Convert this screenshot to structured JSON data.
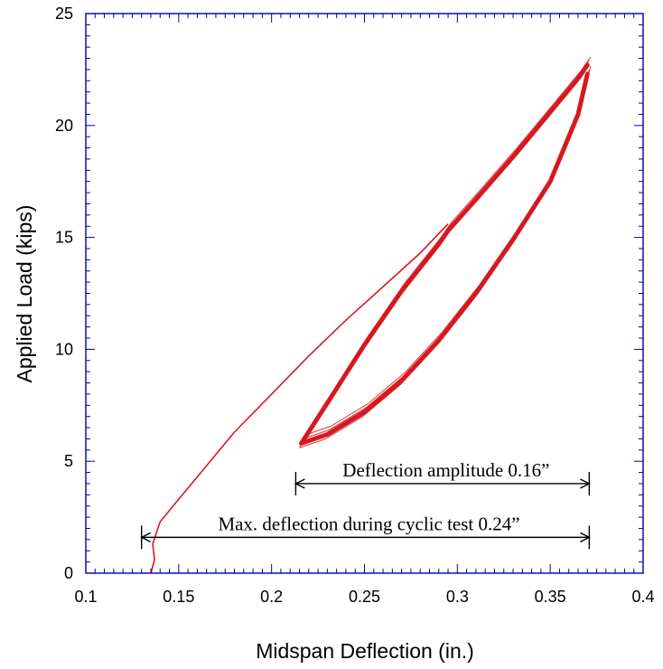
{
  "chart_data": {
    "type": "line",
    "title": "",
    "xlabel": "Midspan Deflection (in.)",
    "ylabel": "Applied Load (kips)",
    "xlim": [
      0.1,
      0.4
    ],
    "ylim": [
      0,
      25
    ],
    "x_ticks": [
      "0.1",
      "0.15",
      "0.2",
      "0.25",
      "0.3",
      "0.35",
      "0.4"
    ],
    "y_ticks": [
      "0",
      "5",
      "10",
      "15",
      "20",
      "25"
    ],
    "grid": false,
    "legend": "none",
    "colors": {
      "series": "#d7191f",
      "axis": "#0000a0",
      "text": "#000000"
    },
    "series": [
      {
        "name": "",
        "role": "initial-loading",
        "x": [
          0.135,
          0.137,
          0.136,
          0.14,
          0.15,
          0.16,
          0.18,
          0.2,
          0.22,
          0.24,
          0.26,
          0.28,
          0.295
        ],
        "y": [
          0,
          0.6,
          1.3,
          2.3,
          3.3,
          4.3,
          6.3,
          8.0,
          9.7,
          11.3,
          12.8,
          14.3,
          15.6
        ]
      },
      {
        "name": "",
        "role": "cyclic-loop-upper",
        "x": [
          0.216,
          0.23,
          0.25,
          0.27,
          0.29,
          0.295,
          0.31,
          0.33,
          0.35,
          0.365,
          0.37
        ],
        "y": [
          5.8,
          7.6,
          10.2,
          12.6,
          14.7,
          15.3,
          16.7,
          18.6,
          20.6,
          22.1,
          22.7
        ]
      },
      {
        "name": "",
        "role": "cyclic-loop-lower",
        "x": [
          0.37,
          0.365,
          0.35,
          0.33,
          0.31,
          0.29,
          0.27,
          0.25,
          0.23,
          0.216
        ],
        "y": [
          22.3,
          20.5,
          17.5,
          14.9,
          12.5,
          10.4,
          8.6,
          7.2,
          6.2,
          5.8
        ]
      }
    ],
    "annotations": [
      {
        "text": "Deflection amplitude 0.16”",
        "x_start": 0.213,
        "x_end": 0.371,
        "y": 4.0
      },
      {
        "text": "Max. deflection during cyclic test 0.24”",
        "x_start": 0.13,
        "x_end": 0.371,
        "y": 1.6
      }
    ]
  }
}
